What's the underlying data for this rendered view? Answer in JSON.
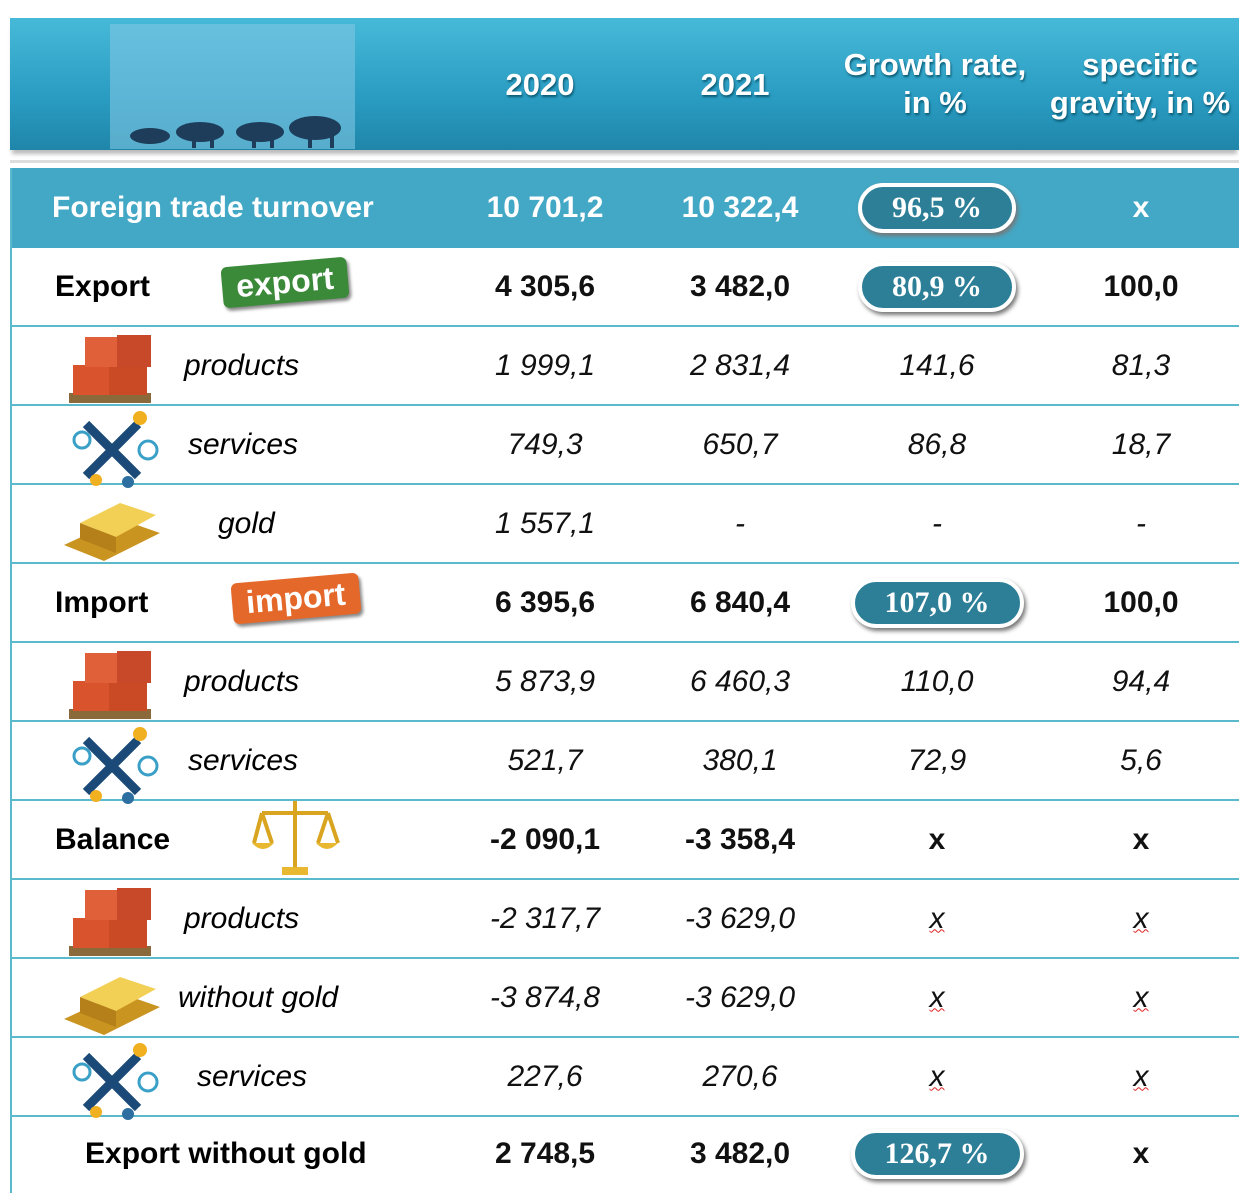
{
  "header": {
    "columns": [
      "2020",
      "2021",
      "Growth rate, in  %",
      "specific gravity, in %"
    ]
  },
  "rows": [
    {
      "label": "Foreign trade turnover",
      "cells": [
        "10 701,2",
        "10 322,4",
        "96,5 %",
        "x"
      ]
    },
    {
      "label": "Export",
      "badge": "export",
      "cells": [
        "4 305,6",
        "3 482,0",
        "80,9 %",
        "100,0"
      ]
    },
    {
      "label": "products",
      "cells": [
        "1 999,1",
        "2 831,4",
        "141,6",
        "81,3"
      ]
    },
    {
      "label": "services",
      "cells": [
        "749,3",
        "650,7",
        "86,8",
        "18,7"
      ]
    },
    {
      "label": "gold",
      "cells": [
        "1 557,1",
        "-",
        "-",
        "-"
      ]
    },
    {
      "label": "Import",
      "badge": "import",
      "cells": [
        "6 395,6",
        "6 840,4",
        "107,0 %",
        "100,0"
      ]
    },
    {
      "label": "products",
      "cells": [
        "5 873,9",
        "6 460,3",
        "110,0",
        "94,4"
      ]
    },
    {
      "label": "services",
      "cells": [
        "521,7",
        "380,1",
        "72,9",
        "5,6"
      ]
    },
    {
      "label": "Balance",
      "cells": [
        "-2 090,1",
        "-3 358,4",
        "x",
        "x"
      ]
    },
    {
      "label": "products",
      "cells": [
        "-2 317,7",
        "-3 629,0",
        "x",
        "x"
      ]
    },
    {
      "label": "without gold",
      "cells": [
        "-3 874,8",
        "-3 629,0",
        "x",
        "x"
      ]
    },
    {
      "label": "services",
      "cells": [
        "227,6",
        "270,6",
        "x",
        "x"
      ]
    },
    {
      "label": "Export without gold",
      "cells": [
        "2 748,5",
        "3 482,0",
        "126,7 %",
        "x"
      ]
    }
  ]
}
